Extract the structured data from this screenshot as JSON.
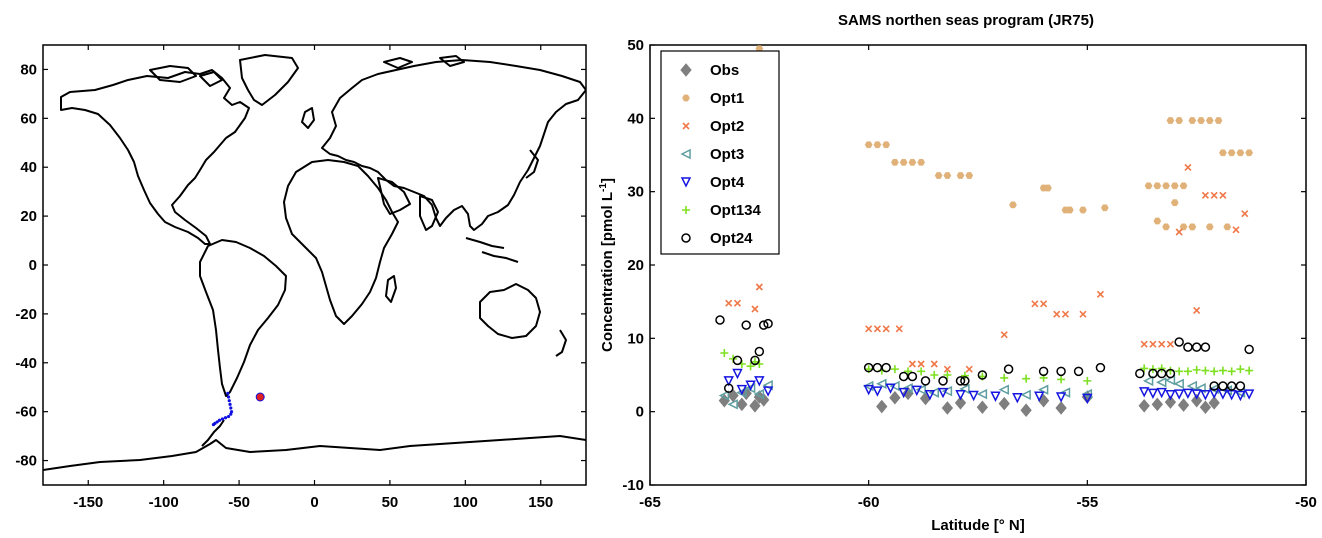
{
  "chart_data": [
    {
      "type": "map",
      "xlim": [
        -180,
        180
      ],
      "ylim": [
        -90,
        90
      ],
      "xticks": [
        -150,
        -100,
        -50,
        0,
        50,
        100,
        150
      ],
      "yticks": [
        -80,
        -60,
        -40,
        -20,
        0,
        20,
        40,
        60,
        80
      ],
      "track": {
        "color": "#1010e0",
        "lons": [
          -57.5,
          -57.0,
          -56.5,
          -56.0,
          -55.5,
          -55.0,
          -55.5,
          -57.0,
          -59.0,
          -61.0,
          -63.0,
          -64.5,
          -66.0,
          -67.0
        ],
        "lats": [
          -52.5,
          -54.0,
          -55.5,
          -57.0,
          -58.5,
          -60.0,
          -61.0,
          -62.0,
          -62.5,
          -63.0,
          -63.5,
          -64.2,
          -64.8,
          -65.3
        ]
      },
      "marker": {
        "lon": -36.0,
        "lat": -54.0,
        "color": "#e02020"
      }
    },
    {
      "type": "scatter",
      "title": "SAMS northen seas program (JR75)",
      "xlabel": "Latitude [° N]",
      "ylabel": "Concentration [pmol L",
      "ylabel_sup": "-1",
      "ylabel_end": "]",
      "xlim": [
        -65,
        -50
      ],
      "ylim": [
        -10,
        50
      ],
      "xticks": [
        -65,
        -60,
        -55,
        -50
      ],
      "yticks": [
        -10,
        0,
        10,
        20,
        30,
        40,
        50
      ],
      "legend_position": "top-left",
      "series": [
        {
          "name": "Obs",
          "marker": "diamond",
          "color": "#7f7f7f",
          "x": [
            -63.3,
            -63.1,
            -62.9,
            -62.8,
            -62.6,
            -62.5,
            -62.4,
            -59.7,
            -59.4,
            -59.1,
            -58.7,
            -58.2,
            -57.9,
            -57.4,
            -56.9,
            -56.4,
            -56.0,
            -55.6,
            -55.0,
            -53.7,
            -53.4,
            -53.1,
            -52.8,
            -52.5,
            -52.3,
            -52.1
          ],
          "y": [
            1.5,
            2.2,
            1.0,
            2.5,
            0.8,
            2.0,
            1.6,
            0.7,
            1.9,
            2.5,
            1.8,
            0.5,
            1.2,
            0.6,
            1.1,
            0.2,
            1.5,
            0.5,
            2.0,
            0.8,
            1.0,
            1.3,
            0.9,
            1.5,
            0.6,
            1.2
          ]
        },
        {
          "name": "Opt1",
          "marker": "hexagon",
          "color": "#e0b27a",
          "x": [
            -62.5,
            -60.0,
            -59.8,
            -59.6,
            -59.4,
            -59.2,
            -59.0,
            -58.8,
            -58.4,
            -58.2,
            -57.9,
            -57.7,
            -56.7,
            -56.0,
            -55.9,
            -55.5,
            -55.4,
            -55.1,
            -54.6,
            -53.6,
            -53.4,
            -53.2,
            -53.0,
            -52.8,
            -53.1,
            -52.9,
            -52.6,
            -52.4,
            -52.2,
            -52.0,
            -53.4,
            -53.2,
            -52.8,
            -52.6,
            -52.2,
            -51.9,
            -51.7,
            -51.5,
            -51.3,
            -53.0,
            -52.6,
            -51.8
          ],
          "y": [
            49.5,
            36.4,
            36.4,
            36.4,
            34.0,
            34.0,
            34.0,
            34.0,
            32.2,
            32.2,
            32.2,
            32.2,
            28.2,
            30.5,
            30.5,
            27.5,
            27.5,
            27.5,
            27.8,
            30.8,
            30.8,
            30.8,
            30.8,
            30.8,
            39.7,
            39.7,
            39.7,
            39.7,
            39.7,
            39.7,
            26.0,
            25.2,
            25.2,
            25.2,
            25.2,
            35.3,
            35.3,
            35.3,
            35.3,
            28.5,
            25.2,
            25.2
          ]
        },
        {
          "name": "Opt2",
          "marker": "x",
          "color": "#f07848",
          "x": [
            -63.2,
            -63.0,
            -62.6,
            -62.5,
            -60.0,
            -59.8,
            -59.6,
            -59.3,
            -59.0,
            -58.8,
            -58.5,
            -58.2,
            -57.7,
            -56.9,
            -56.2,
            -56.0,
            -55.7,
            -55.5,
            -55.1,
            -54.7,
            -53.7,
            -53.5,
            -53.3,
            -53.1,
            -52.9,
            -52.7,
            -52.5,
            -52.3,
            -52.1,
            -51.9,
            -51.6,
            -51.4
          ],
          "y": [
            14.8,
            14.8,
            14.0,
            17.0,
            11.3,
            11.3,
            11.3,
            11.3,
            6.5,
            6.5,
            6.5,
            5.8,
            5.8,
            10.5,
            14.7,
            14.7,
            13.3,
            13.3,
            13.3,
            16.0,
            9.2,
            9.2,
            9.2,
            9.2,
            24.5,
            33.3,
            13.8,
            29.5,
            29.5,
            29.5,
            24.8,
            27.0
          ]
        },
        {
          "name": "Opt3",
          "marker": "triangle-left",
          "color": "#5f9ea0",
          "x": [
            -63.3,
            -63.1,
            -62.9,
            -62.7,
            -62.5,
            -62.3,
            -60.0,
            -59.7,
            -59.4,
            -59.1,
            -58.8,
            -58.5,
            -58.2,
            -57.8,
            -57.4,
            -56.9,
            -56.4,
            -56.0,
            -55.5,
            -55.0,
            -53.6,
            -53.3,
            -53.1,
            -52.9,
            -52.6,
            -52.4,
            -52.1,
            -51.8,
            -51.5
          ],
          "y": [
            2.2,
            1.0,
            2.6,
            3.2,
            2.4,
            3.6,
            3.5,
            3.8,
            3.5,
            3.2,
            3.0,
            2.6,
            2.8,
            3.1,
            2.4,
            3.0,
            2.3,
            3.0,
            2.6,
            2.4,
            4.2,
            4.0,
            4.3,
            3.8,
            3.5,
            3.2,
            3.1,
            2.9,
            2.6
          ]
        },
        {
          "name": "Opt4",
          "marker": "triangle-down",
          "color": "#1515e0",
          "x": [
            -63.2,
            -63.0,
            -62.9,
            -62.7,
            -62.5,
            -62.3,
            -60.0,
            -59.8,
            -59.5,
            -59.2,
            -58.9,
            -58.6,
            -58.3,
            -57.9,
            -57.6,
            -57.1,
            -56.6,
            -56.1,
            -55.6,
            -55.0,
            -53.7,
            -53.5,
            -53.3,
            -53.1,
            -52.9,
            -52.7,
            -52.5,
            -52.3,
            -52.1,
            -51.9,
            -51.7,
            -51.5,
            -51.3
          ],
          "y": [
            4.2,
            5.2,
            3.0,
            3.6,
            4.2,
            2.8,
            3.0,
            2.8,
            3.2,
            2.6,
            2.9,
            2.3,
            2.6,
            2.3,
            2.2,
            2.1,
            1.9,
            2.1,
            2.0,
            1.8,
            2.7,
            2.5,
            2.6,
            2.3,
            2.4,
            2.5,
            2.4,
            2.3,
            2.5,
            2.4,
            2.3,
            2.2,
            2.4
          ]
        },
        {
          "name": "Opt134",
          "marker": "plus",
          "color": "#7ee020",
          "x": [
            -63.3,
            -63.1,
            -62.9,
            -62.7,
            -62.6,
            -62.5,
            -60.0,
            -59.7,
            -59.4,
            -59.1,
            -58.8,
            -58.5,
            -58.2,
            -57.8,
            -57.4,
            -56.9,
            -56.4,
            -56.0,
            -55.6,
            -55.0,
            -53.7,
            -53.5,
            -53.3,
            -53.1,
            -52.9,
            -52.7,
            -52.5,
            -52.3,
            -52.1,
            -51.9,
            -51.7,
            -51.5,
            -51.3
          ],
          "y": [
            8.0,
            7.2,
            6.5,
            6.2,
            6.8,
            6.5,
            5.8,
            5.6,
            5.8,
            5.5,
            5.5,
            5.0,
            5.0,
            4.9,
            4.8,
            4.6,
            4.5,
            4.6,
            4.4,
            4.2,
            5.9,
            5.8,
            5.9,
            5.6,
            5.5,
            5.5,
            5.7,
            5.6,
            5.5,
            5.6,
            5.5,
            5.8,
            5.6
          ]
        },
        {
          "name": "Opt24",
          "marker": "circle",
          "color": "#000000",
          "x": [
            -63.4,
            -63.2,
            -63.0,
            -62.8,
            -62.6,
            -62.5,
            -62.4,
            -62.3,
            -60.0,
            -59.8,
            -59.6,
            -59.2,
            -59.0,
            -58.7,
            -58.3,
            -57.9,
            -57.8,
            -57.4,
            -56.8,
            -56.0,
            -55.6,
            -55.2,
            -54.7,
            -53.8,
            -53.5,
            -53.3,
            -53.1,
            -52.9,
            -52.7,
            -52.5,
            -52.3,
            -52.1,
            -51.9,
            -51.7,
            -51.5,
            -51.3
          ],
          "y": [
            12.5,
            3.2,
            7.0,
            11.8,
            7.0,
            8.2,
            11.8,
            12.0,
            6.0,
            6.0,
            6.0,
            4.8,
            4.8,
            4.2,
            4.2,
            4.2,
            4.2,
            5.0,
            5.8,
            5.5,
            5.5,
            5.5,
            6.0,
            5.2,
            5.2,
            5.2,
            5.2,
            9.5,
            8.8,
            8.8,
            8.8,
            3.5,
            3.5,
            3.5,
            3.5,
            8.5
          ]
        }
      ]
    }
  ]
}
